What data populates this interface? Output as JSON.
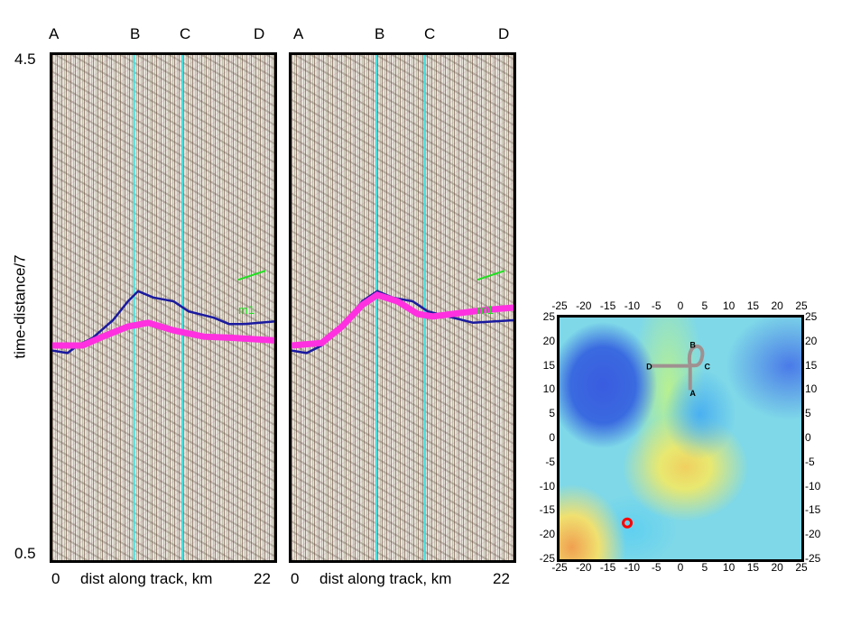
{
  "chart_data": [
    {
      "type": "line",
      "panel": "left",
      "top_labels": [
        "A",
        "B",
        "C",
        "D"
      ],
      "ylabel": "time-distance/7",
      "ytick_top": "4.5",
      "ytick_bottom": "0.5",
      "ylim": [
        0.5,
        4.5
      ],
      "xlabel": "dist along track, km",
      "xtick_left": "0",
      "xtick_right": "22",
      "xlim": [
        0,
        22
      ],
      "vertical_lines_km": [
        8.1,
        12.9
      ],
      "vertical_line_color": "#40e0e0",
      "annotation": "m1",
      "annotation_color": "#20e020",
      "series": [
        {
          "color": "#1a1aa0",
          "points": [
            [
              0,
              2.16
            ],
            [
              1.5,
              2.14
            ],
            [
              2.5,
              2.2
            ],
            [
              4,
              2.26
            ],
            [
              6,
              2.4
            ],
            [
              7.5,
              2.55
            ],
            [
              8.5,
              2.63
            ],
            [
              10,
              2.58
            ],
            [
              12,
              2.55
            ],
            [
              13.5,
              2.47
            ],
            [
              16,
              2.42
            ],
            [
              17.5,
              2.37
            ],
            [
              19,
              2.37
            ],
            [
              22,
              2.39
            ]
          ]
        },
        {
          "color": "#ff30e0",
          "points": [
            [
              0,
              2.2
            ],
            [
              3,
              2.2
            ],
            [
              5,
              2.27
            ],
            [
              7.5,
              2.35
            ],
            [
              9.5,
              2.38
            ],
            [
              12,
              2.32
            ],
            [
              15,
              2.27
            ],
            [
              18,
              2.26
            ],
            [
              22,
              2.24
            ]
          ]
        }
      ]
    },
    {
      "type": "line",
      "panel": "right",
      "top_labels": [
        "A",
        "B",
        "C",
        "D"
      ],
      "xlabel": "dist along track, km",
      "xtick_left": "0",
      "xtick_right": "22",
      "xlim": [
        0,
        22
      ],
      "ylim": [
        0.5,
        4.5
      ],
      "vertical_lines_km": [
        8.4,
        13.2
      ],
      "vertical_line_color": "#40e0e0",
      "annotation": "m1",
      "annotation_color": "#20e020",
      "series": [
        {
          "color": "#1a1aa0",
          "points": [
            [
              0,
              2.16
            ],
            [
              1.5,
              2.14
            ],
            [
              3,
              2.2
            ],
            [
              5,
              2.35
            ],
            [
              7,
              2.55
            ],
            [
              8.5,
              2.63
            ],
            [
              10,
              2.58
            ],
            [
              12,
              2.55
            ],
            [
              13.5,
              2.47
            ],
            [
              16,
              2.42
            ],
            [
              18,
              2.38
            ],
            [
              22,
              2.4
            ]
          ]
        },
        {
          "color": "#ff30e0",
          "points": [
            [
              0,
              2.2
            ],
            [
              3,
              2.22
            ],
            [
              5,
              2.35
            ],
            [
              7,
              2.52
            ],
            [
              8.5,
              2.6
            ],
            [
              10.5,
              2.55
            ],
            [
              12.5,
              2.45
            ],
            [
              14,
              2.43
            ],
            [
              16,
              2.45
            ],
            [
              19,
              2.48
            ],
            [
              22,
              2.5
            ]
          ]
        }
      ]
    },
    {
      "type": "map",
      "xlim": [
        -25,
        25
      ],
      "ylim": [
        -25,
        25
      ],
      "ticks": [
        "-25",
        "-20",
        "-15",
        "-10",
        "-5",
        "0",
        "5",
        "10",
        "15",
        "20",
        "25"
      ],
      "track_color": "#a09090",
      "track_points": [
        [
          -6,
          15
        ],
        [
          2,
          15
        ],
        [
          2,
          10
        ]
      ],
      "track_labels": [
        {
          "label": "A",
          "x": 2.5,
          "y": 9.5
        },
        {
          "label": "B",
          "x": 2.5,
          "y": 19.5
        },
        {
          "label": "C",
          "x": 5.5,
          "y": 15
        },
        {
          "label": "D",
          "x": -6.5,
          "y": 15
        }
      ],
      "marker": {
        "x": -11,
        "y": -17.5,
        "color": "#ff0000"
      }
    }
  ]
}
